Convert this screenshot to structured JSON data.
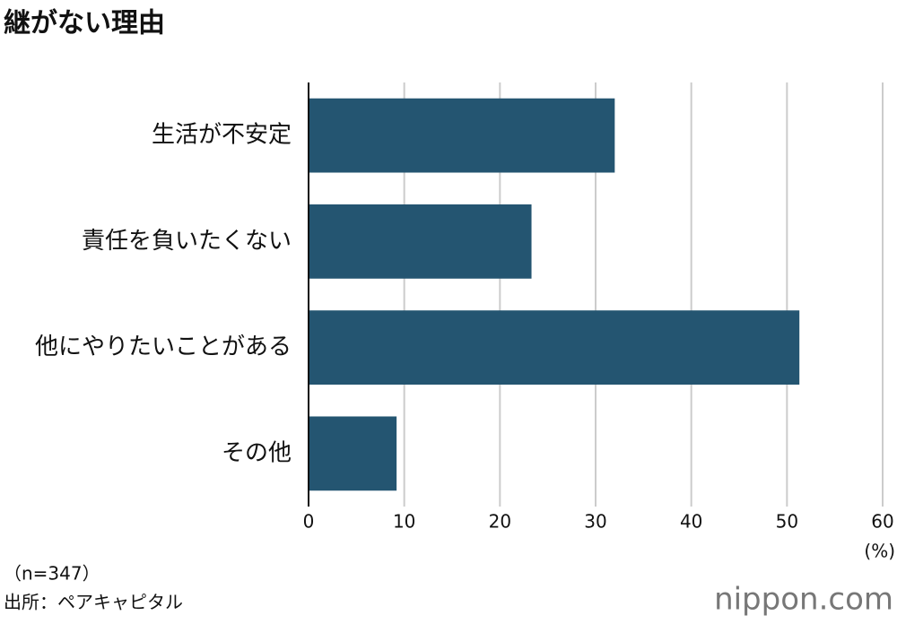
{
  "chart_data": {
    "type": "hbar",
    "title": "継がない理由",
    "categories": [
      "生活が不安定",
      "責任を負いたくない",
      "他にやりたいことがある",
      "その他"
    ],
    "values": [
      32.0,
      23.3,
      51.3,
      9.2
    ],
    "color": "#245571",
    "xlim": [
      0,
      60
    ],
    "xticks": [
      0,
      10,
      20,
      30,
      40,
      50,
      60
    ],
    "grid": true,
    "xlabel": "(%)",
    "notes": [
      "（n=347）",
      "出所：ペアキャピタル"
    ],
    "logo": "nippon.com"
  }
}
